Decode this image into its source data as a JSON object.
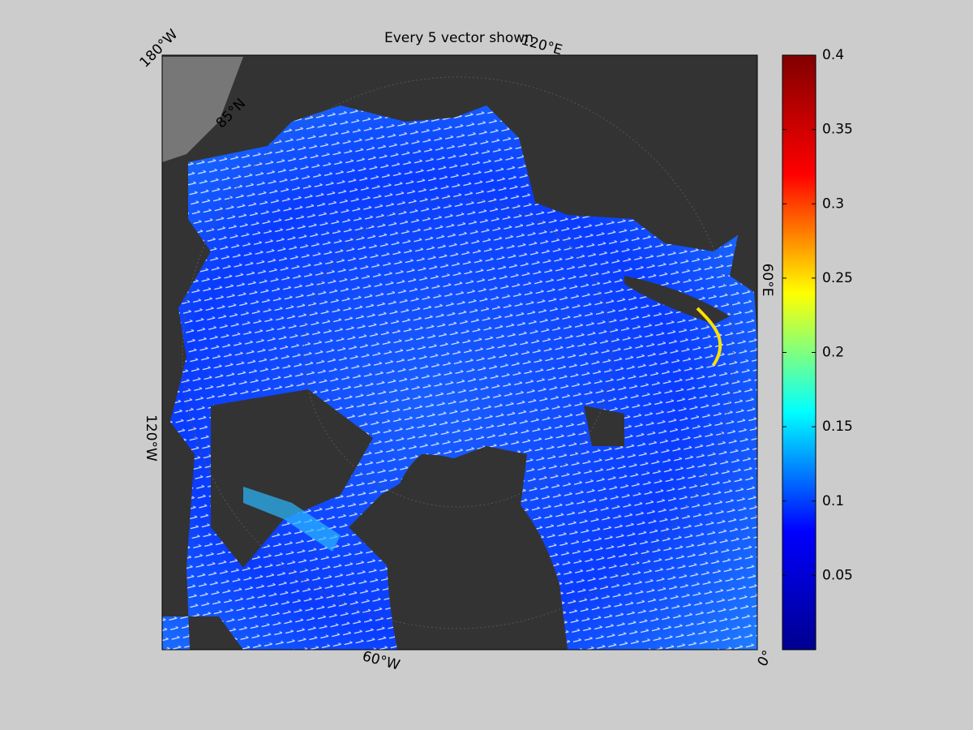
{
  "title": "Every 5 vector shown",
  "map": {
    "lon_labels": [
      "180°W",
      "120°E",
      "60°E",
      "0°",
      "60°W",
      "120°W"
    ],
    "lat_labels": [
      "85°N"
    ]
  },
  "colorbar": {
    "lim": [
      0,
      0.4
    ],
    "ticks": [
      0.05,
      0.1,
      0.15,
      0.2,
      0.25,
      0.3,
      0.35,
      0.4
    ],
    "colormap": [
      "#00008f",
      "#0000ff",
      "#00ffff",
      "#ffff00",
      "#ff0000",
      "#800000"
    ]
  }
}
